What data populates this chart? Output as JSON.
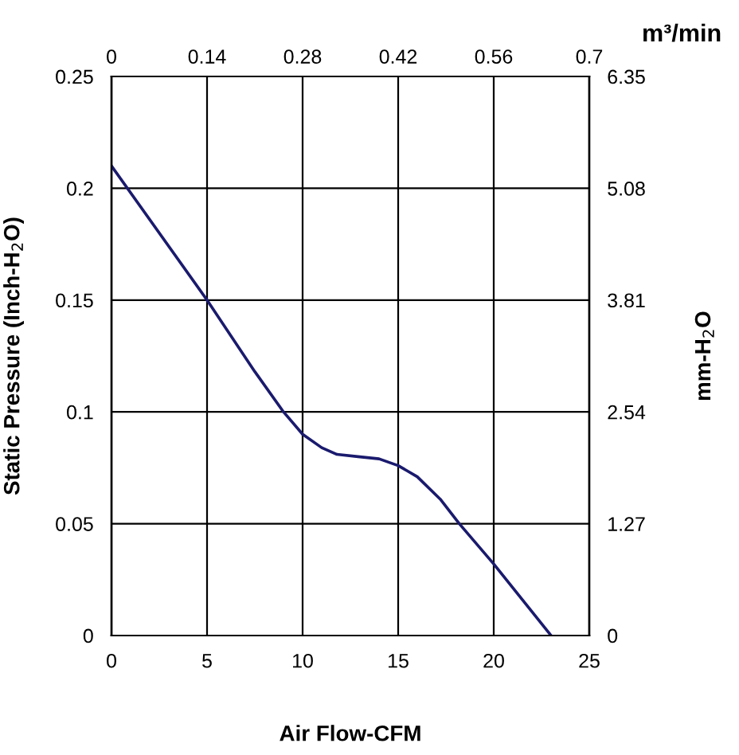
{
  "chart_data": {
    "type": "line",
    "xlabel": "Air Flow-CFM",
    "ylabel": "Static Pressure (Inch-H$_{2}$O)",
    "y2label": "mm-H$_{2}$O",
    "x2label": "m³/min",
    "x": [
      0,
      5,
      7.5,
      9,
      10,
      11,
      11.8,
      12.9,
      14,
      15,
      16,
      17.2,
      18.2,
      20,
      23
    ],
    "series": [
      {
        "color": "#1a1a6e",
        "values": [
          0.21,
          0.15,
          0.118,
          0.1,
          0.09,
          0.084,
          0.081,
          0.08,
          0.079,
          0.076,
          0.071,
          0.061,
          0.05,
          0.032,
          0
        ]
      }
    ],
    "xlim": [
      0,
      25
    ],
    "xticks": [
      0,
      5,
      10,
      15,
      20,
      25
    ],
    "ylim": [
      0,
      0.25
    ],
    "yticks": [
      0,
      0.05,
      0.1,
      0.15,
      0.2,
      0.25
    ],
    "y2lim": [
      0,
      6.35
    ],
    "y2ticks": [
      0,
      1.27,
      2.54,
      3.81,
      5.08,
      6.35
    ],
    "x2lim": [
      0,
      0.7
    ],
    "x2ticks": [
      0,
      0.14,
      0.28,
      0.42,
      0.56,
      0.7
    ],
    "grid": true,
    "legend": false,
    "marker": "none",
    "line_style": "solid"
  }
}
